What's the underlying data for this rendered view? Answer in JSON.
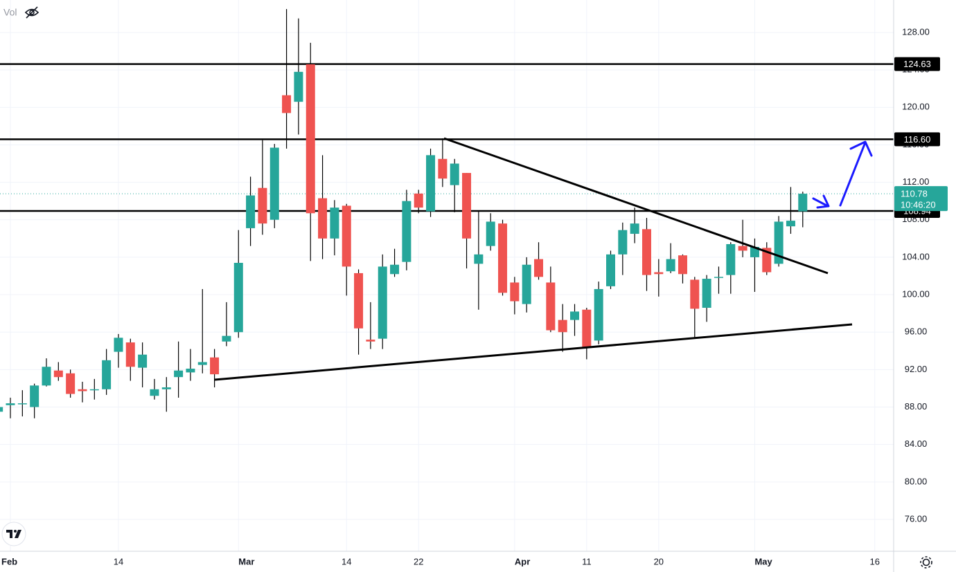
{
  "chart_data": {
    "type": "candlestick",
    "indicator_label": "Vol",
    "categories": [
      null,
      "Feb",
      null,
      null,
      null,
      null,
      null,
      null,
      null,
      null,
      "14",
      null,
      null,
      null,
      null,
      null,
      null,
      null,
      null,
      null,
      "Mar",
      null,
      null,
      null,
      null,
      null,
      null,
      null,
      null,
      "14",
      null,
      null,
      null,
      null,
      null,
      "22",
      null,
      null,
      null,
      null,
      null,
      null,
      null,
      "Apr",
      null,
      null,
      null,
      null,
      null,
      "11",
      null,
      null,
      null,
      null,
      null,
      "20",
      null,
      null,
      null,
      null,
      null,
      null,
      null,
      "May",
      null,
      null,
      null,
      null,
      null,
      null,
      null,
      null,
      null,
      "16"
    ],
    "open": [
      87.5,
      88.2,
      88.3,
      88.0,
      90.3,
      91.9,
      91.6,
      89.9,
      89.8,
      89.9,
      93.9,
      94.9,
      92.2,
      89.2,
      89.9,
      91.2,
      91.7,
      92.5,
      93.3,
      95.0,
      96.0,
      107.1,
      111.4,
      108.0,
      121.3,
      120.6,
      124.6,
      110.3,
      106.0,
      109.5,
      102.3,
      95.2,
      95.3,
      102.2,
      103.5,
      110.8,
      108.9,
      114.5,
      111.7,
      113.0,
      103.3,
      105.2,
      107.6,
      101.3,
      99.0,
      103.8,
      101.3,
      97.3,
      97.3,
      98.4,
      95.1,
      100.9,
      104.3,
      106.5,
      107.0,
      102.4,
      102.5,
      104.2,
      101.6,
      98.6,
      101.8,
      102.1,
      105.2,
      104.0,
      105.0,
      103.3,
      107.3,
      108.9,
      null,
      null,
      null,
      null,
      null,
      null
    ],
    "high": [
      88.5,
      89.0,
      89.8,
      90.5,
      93.2,
      92.8,
      92.0,
      90.7,
      91.0,
      94.2,
      95.8,
      95.3,
      94.9,
      91.0,
      91.2,
      95.0,
      94.2,
      100.6,
      94.2,
      99.2,
      106.9,
      112.6,
      116.5,
      116.1,
      130.5,
      129.5,
      126.9,
      114.9,
      110.1,
      109.7,
      102.7,
      99.2,
      104.3,
      104.9,
      111.2,
      111.2,
      115.6,
      116.7,
      114.5,
      113.0,
      109.0,
      108.7,
      108.0,
      101.9,
      104.0,
      105.6,
      103.0,
      99.0,
      99.0,
      98.6,
      101.4,
      104.7,
      107.7,
      109.3,
      108.2,
      103.8,
      105.5,
      104.3,
      101.9,
      102.1,
      103.0,
      105.6,
      108.0,
      106.0,
      105.6,
      108.4,
      111.5,
      111.0,
      null,
      null,
      null,
      null,
      null,
      null
    ],
    "low": [
      87.3,
      86.8,
      87.0,
      86.8,
      90.2,
      90.8,
      89.0,
      88.5,
      88.8,
      89.3,
      92.2,
      90.8,
      90.1,
      88.8,
      87.5,
      89.0,
      90.8,
      91.6,
      90.1,
      94.5,
      95.4,
      105.2,
      106.4,
      107.1,
      115.6,
      117.1,
      103.6,
      103.8,
      104.2,
      99.9,
      93.6,
      94.2,
      94.2,
      101.9,
      102.6,
      108.7,
      108.3,
      111.5,
      108.8,
      102.8,
      98.4,
      104.7,
      99.9,
      97.9,
      98.1,
      101.6,
      96.0,
      93.9,
      95.6,
      93.1,
      94.7,
      100.6,
      102.1,
      105.5,
      100.4,
      99.8,
      102.3,
      101.2,
      95.4,
      97.1,
      100.1,
      100.1,
      104.0,
      100.3,
      102.1,
      103.0,
      106.5,
      107.2,
      null,
      null,
      null,
      null,
      null,
      null
    ],
    "close": [
      88.0,
      88.4,
      88.4,
      90.3,
      92.3,
      91.2,
      89.4,
      89.7,
      89.9,
      93.0,
      95.4,
      92.3,
      93.6,
      89.9,
      90.1,
      91.9,
      92.1,
      92.8,
      91.5,
      95.6,
      103.4,
      110.6,
      107.6,
      115.7,
      119.4,
      123.8,
      108.7,
      106.0,
      109.3,
      103.0,
      96.4,
      95.0,
      103.0,
      103.2,
      110.0,
      109.3,
      114.9,
      112.4,
      114.0,
      106.0,
      104.3,
      107.8,
      100.2,
      99.3,
      103.2,
      101.9,
      96.2,
      96.0,
      98.2,
      94.4,
      100.6,
      104.3,
      106.9,
      107.6,
      102.1,
      102.2,
      103.8,
      102.2,
      98.5,
      101.7,
      101.9,
      105.4,
      104.7,
      105.1,
      102.4,
      107.8,
      107.9,
      110.78,
      null,
      null,
      null,
      null,
      null,
      null
    ],
    "up_color": "#26a69a",
    "down_color": "#ef5350",
    "ylim": [
      72.6,
      131.47
    ],
    "yticks": [
      {
        "value": 76,
        "label": "76.00"
      },
      {
        "value": 80,
        "label": "80.00"
      },
      {
        "value": 84,
        "label": "84.00"
      },
      {
        "value": 88,
        "label": "88.00"
      },
      {
        "value": 92,
        "label": "92.00"
      },
      {
        "value": 96,
        "label": "96.00"
      },
      {
        "value": 100,
        "label": "100.00"
      },
      {
        "value": 104,
        "label": "104.00"
      },
      {
        "value": 108,
        "label": "108.00"
      },
      {
        "value": 112,
        "label": "112.00"
      },
      {
        "value": 116,
        "label": "116.00"
      },
      {
        "value": 120,
        "label": "120.00"
      },
      {
        "value": 124,
        "label": "124.00"
      },
      {
        "value": 128,
        "label": "128.00"
      }
    ],
    "levels": [
      124.63,
      {
        "value": 116.6,
        "label": "116.60"
      },
      108.94
    ],
    "last_price": 110.78,
    "countdown": "10:46:20",
    "grid": true
  }
}
